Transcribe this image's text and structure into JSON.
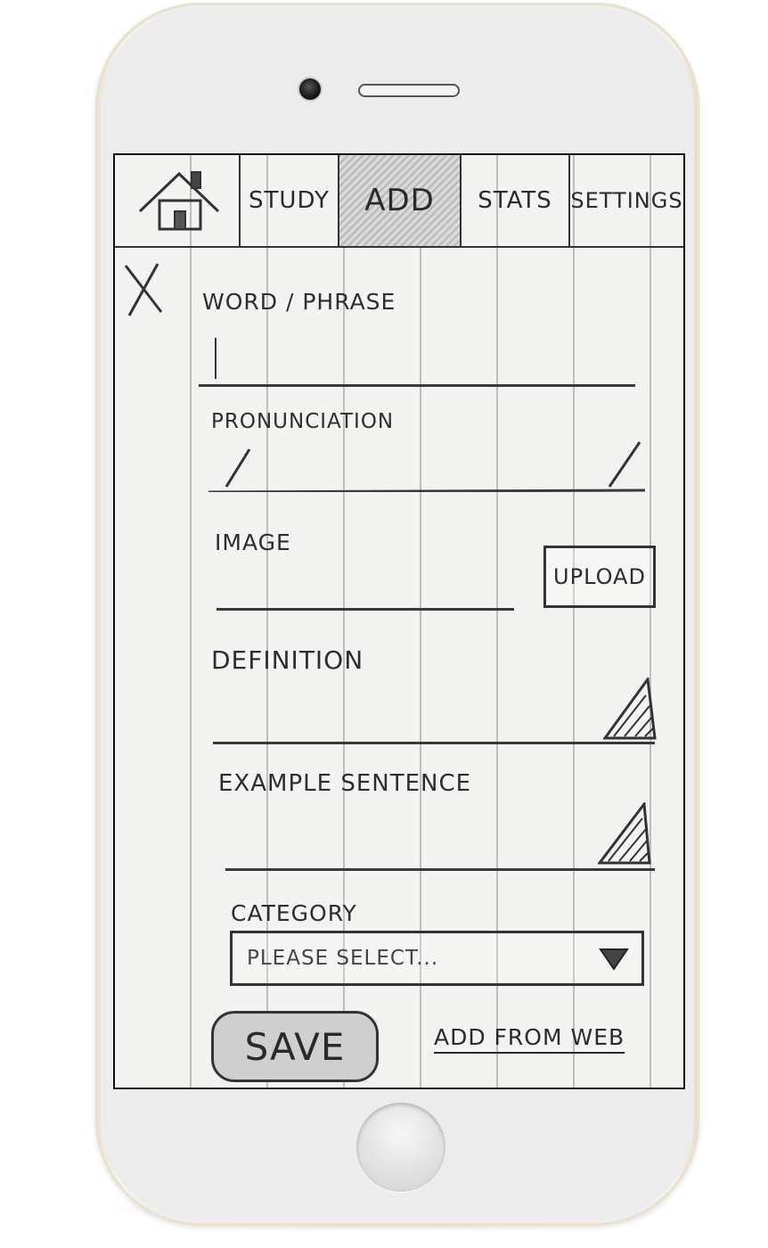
{
  "tabs": {
    "home_icon": "house-icon",
    "study": "STUDY",
    "add": "ADD",
    "stats": "STATS",
    "settings": "SETTINGS"
  },
  "form": {
    "close_icon": "close-icon",
    "word_phrase_label": "WORD / PHRASE",
    "word_phrase_value": "",
    "pronunciation_label": "PRONUNCIATION",
    "pronunciation_value": "/ /",
    "image_label": "IMAGE",
    "upload_label": "UPLOAD",
    "definition_label": "DEFINITION",
    "example_sentence_label": "EXAMPLE SENTENCE",
    "category_label": "CATEGORY",
    "category_selected": "PLEASE SELECT...",
    "save_label": "SAVE",
    "add_from_web_label": "ADD FROM WEB"
  }
}
